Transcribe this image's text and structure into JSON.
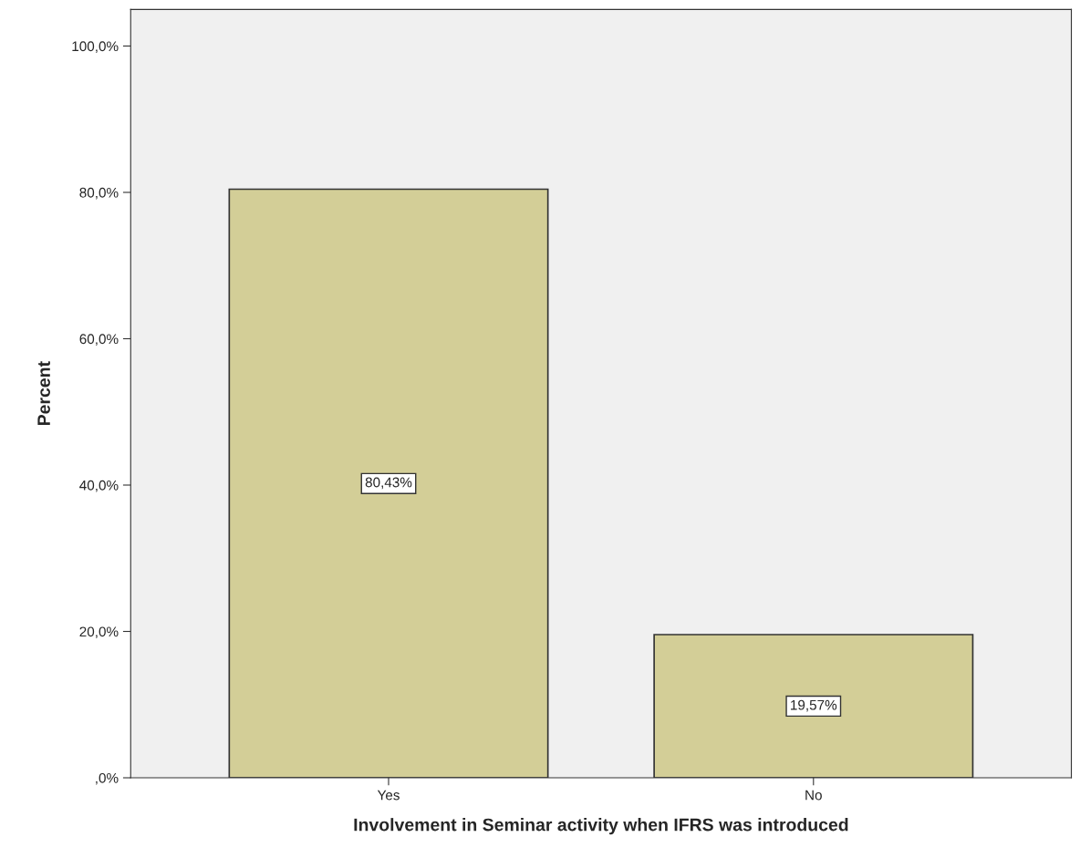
{
  "chart_data": {
    "type": "bar",
    "xlabel": "Involvement in Seminar activity when IFRS was introduced",
    "ylabel": "Percent",
    "categories": [
      "Yes",
      "No"
    ],
    "values": [
      80.43,
      19.57
    ],
    "value_labels": [
      "80,43%",
      "19,57%"
    ],
    "color": "#d3ce97",
    "ylim": [
      0,
      105
    ],
    "yticks": [
      {
        "value": 0,
        "label": ",0%"
      },
      {
        "value": 20,
        "label": "20,0%"
      },
      {
        "value": 40,
        "label": "40,0%"
      },
      {
        "value": 60,
        "label": "60,0%"
      },
      {
        "value": 80,
        "label": "80,0%"
      },
      {
        "value": 100,
        "label": "100,0%"
      }
    ],
    "grid": false,
    "legend": false
  }
}
